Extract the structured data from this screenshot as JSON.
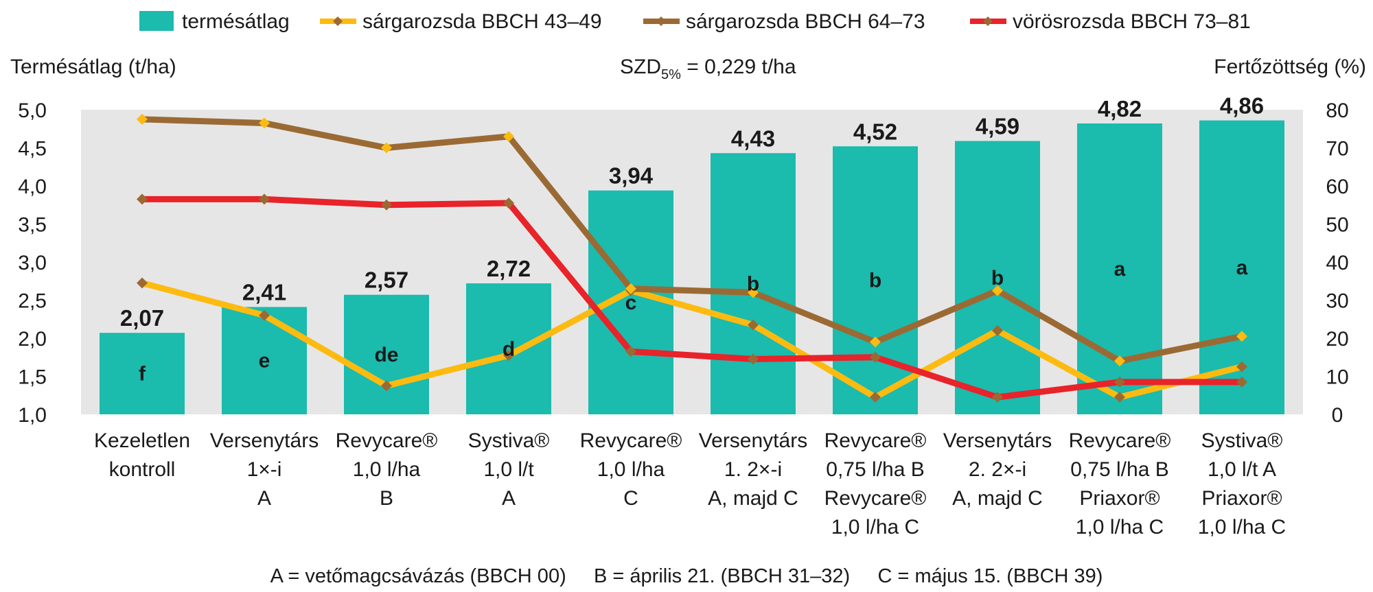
{
  "chart_data": {
    "type": "bar",
    "legend": {
      "placement": "top",
      "items": [
        {
          "label": "termésátlag",
          "color": "#1bbbae",
          "kind": "bar"
        },
        {
          "label": "sárgarozsda BBCH 43–49",
          "color": "#fdbb11",
          "kind": "line"
        },
        {
          "label": "sárgarozsda BBCH 64–73",
          "color": "#9b6a34",
          "kind": "line"
        },
        {
          "label": "vörösrozsda BBCH 73–81",
          "color": "#e8232a",
          "kind": "line"
        }
      ]
    },
    "left_axis": {
      "label": "Termésátlag (t/ha)",
      "range": [
        1.0,
        5.0
      ],
      "ticks": [
        "1,0",
        "1,5",
        "2,0",
        "2,5",
        "3,0",
        "3,5",
        "4,0",
        "4,5",
        "5,0"
      ]
    },
    "right_axis": {
      "label": "Fertőzöttség (%)",
      "range": [
        0,
        80
      ],
      "ticks": [
        "0",
        "10",
        "20",
        "30",
        "40",
        "50",
        "60",
        "70",
        "80"
      ]
    },
    "annotation": {
      "prefix": "SZD",
      "subscript": "5%",
      "suffix": " = 0,229 t/ha"
    },
    "grid": false,
    "plot_background": "#e6e6e6",
    "categories": [
      [
        "Kezeletlen",
        "kontroll"
      ],
      [
        "Versenytárs",
        "1×-i",
        "A"
      ],
      [
        "Revycare®",
        "1,0 l/ha",
        "B"
      ],
      [
        "Systiva®",
        "1,0 l/t",
        "A"
      ],
      [
        "Revycare®",
        "1,0 l/ha",
        "C"
      ],
      [
        "Versenytárs",
        "1. 2×-i",
        "A, majd C"
      ],
      [
        "Revycare®",
        "0,75 l/ha B",
        "Revycare®",
        "1,0 l/ha C"
      ],
      [
        "Versenytárs",
        "2. 2×-i",
        "A, majd C"
      ],
      [
        "Revycare®",
        "0,75 l/ha B",
        "Priaxor®",
        "1,0 l/ha C"
      ],
      [
        "Systiva®",
        "1,0 l/t A",
        "Priaxor®",
        "1,0 l/ha C"
      ]
    ],
    "bars": {
      "name": "termésátlag",
      "values": [
        2.07,
        2.41,
        2.57,
        2.72,
        3.94,
        4.43,
        4.52,
        4.59,
        4.82,
        4.86
      ],
      "value_labels": [
        "2,07",
        "2,41",
        "2,57",
        "2,72",
        "3,94",
        "4,43",
        "4,52",
        "4,59",
        "4,82",
        "4,86"
      ],
      "letters": [
        "f",
        "e",
        "de",
        "d",
        "c",
        "b",
        "b",
        "b",
        "a",
        "a"
      ]
    },
    "series": [
      {
        "name": "sárgarozsda BBCH 43–49",
        "axis": "right",
        "color": "#fdbb11",
        "values": [
          34.5,
          26,
          7.5,
          15.5,
          32.5,
          23.5,
          4.5,
          22,
          4.5,
          12.5
        ]
      },
      {
        "name": "sárgarozsda BBCH 64–73",
        "axis": "right",
        "color": "#9b6a34",
        "values": [
          77.5,
          76.5,
          70,
          73,
          33,
          32,
          19,
          32.5,
          14,
          20.5
        ]
      },
      {
        "name": "vörösrozsda BBCH 73–81",
        "axis": "right",
        "color": "#e8232a",
        "values": [
          56.5,
          56.5,
          55,
          55.5,
          16.5,
          14.5,
          15,
          4.5,
          8.5,
          8.5
        ]
      }
    ]
  },
  "footnote": "A = vetőmagcsávázás (BBCH 00)     B = április 21. (BBCH 31–32)     C = május 15. (BBCH 39)"
}
